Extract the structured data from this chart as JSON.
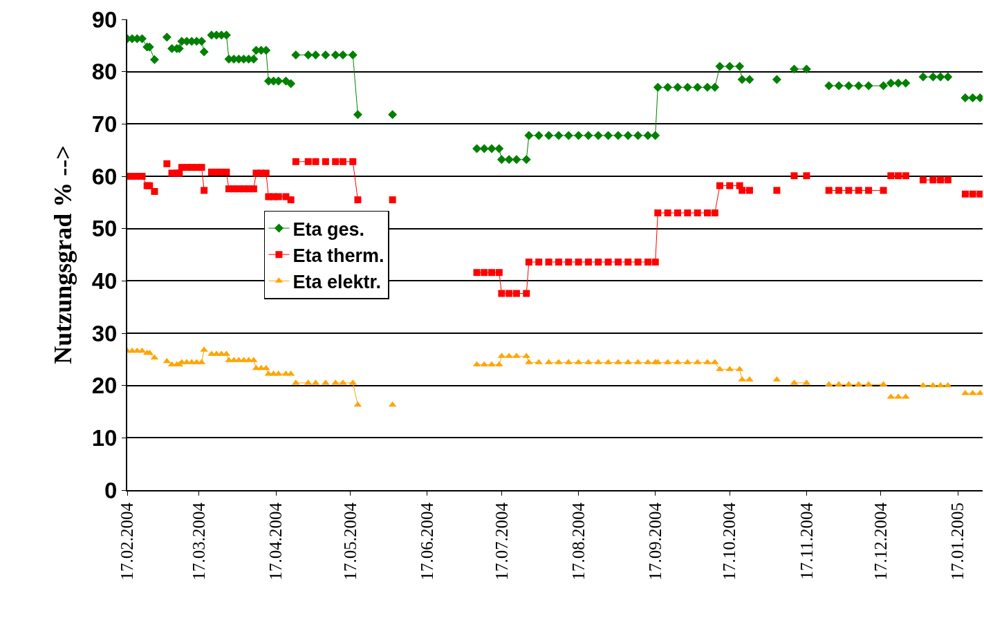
{
  "chart_data": {
    "type": "line",
    "ylabel": "Nutzungsgrad % -->",
    "x": [
      "2004-02-17",
      "2004-02-19",
      "2004-02-21",
      "2004-02-23",
      "2004-02-25",
      "2004-02-26",
      "2004-02-28",
      "2004-03-01",
      "2004-03-04",
      "2004-03-05",
      "2004-03-06",
      "2004-03-08",
      "2004-03-09",
      "2004-03-10",
      "2004-03-12",
      "2004-03-14",
      "2004-03-16",
      "2004-03-18",
      "2004-03-19",
      "2004-03-20",
      "2004-03-22",
      "2004-03-24",
      "2004-03-26",
      "2004-03-28",
      "2004-03-29",
      "2004-03-31",
      "2004-04-02",
      "2004-04-04",
      "2004-04-06",
      "2004-04-08",
      "2004-04-09",
      "2004-04-11",
      "2004-04-13",
      "2004-04-14",
      "2004-04-16",
      "2004-04-18",
      "2004-04-21",
      "2004-04-23",
      "2004-04-24",
      "2004-04-25",
      "2004-04-30",
      "2004-05-01",
      "2004-05-03",
      "2004-05-04",
      "2004-05-07",
      "2004-05-08",
      "2004-05-11",
      "2004-05-14",
      "2004-05-18",
      "2004-05-20",
      "2004-05-21",
      "2004-06-03",
      "2004-06-04",
      "2004-07-07",
      "2004-07-10",
      "2004-07-13",
      "2004-07-16",
      "2004-07-17",
      "2004-07-20",
      "2004-07-23",
      "2004-07-27",
      "2004-07-28",
      "2004-08-01",
      "2004-08-03",
      "2004-08-05",
      "2004-08-09",
      "2004-08-13",
      "2004-08-17",
      "2004-08-21",
      "2004-08-25",
      "2004-08-29",
      "2004-09-02",
      "2004-09-06",
      "2004-09-10",
      "2004-09-14",
      "2004-09-17",
      "2004-09-18",
      "2004-09-22",
      "2004-09-26",
      "2004-09-30",
      "2004-10-04",
      "2004-10-08",
      "2004-10-11",
      "2004-10-13",
      "2004-10-17",
      "2004-10-21",
      "2004-10-22",
      "2004-10-25",
      "2004-10-26",
      "2004-11-05",
      "2004-11-06",
      "2004-11-12",
      "2004-11-17",
      "2004-11-20",
      "2004-11-26",
      "2004-11-30",
      "2004-12-04",
      "2004-12-08",
      "2004-12-12",
      "2004-12-18",
      "2004-12-19",
      "2004-12-21",
      "2004-12-24",
      "2004-12-27",
      "2004-12-29",
      "2005-01-03",
      "2005-01-07",
      "2005-01-10",
      "2005-01-13",
      "2005-01-16",
      "2005-01-20",
      "2005-01-23",
      "2005-01-26"
    ],
    "series": [
      {
        "name": "Eta ges.",
        "color": "#008000",
        "marker": "diamond",
        "values": [
          86.3,
          86.3,
          86.3,
          86.3,
          84.7,
          84.7,
          82.3,
          null,
          86.6,
          null,
          84.4,
          84.4,
          84.4,
          85.8,
          85.8,
          85.8,
          85.8,
          85.8,
          83.8,
          null,
          87.0,
          87.0,
          87.0,
          87.0,
          82.4,
          82.4,
          82.4,
          82.4,
          82.4,
          82.4,
          84.1,
          84.1,
          84.1,
          78.2,
          78.2,
          78.2,
          78.2,
          77.7,
          null,
          83.2,
          83.2,
          null,
          83.2,
          null,
          83.2,
          null,
          83.2,
          83.2,
          83.2,
          71.8,
          null,
          71.8,
          null,
          65.3,
          65.3,
          65.3,
          65.3,
          63.2,
          63.2,
          63.2,
          63.2,
          67.8,
          67.8,
          null,
          67.8,
          67.8,
          67.8,
          67.8,
          67.8,
          67.8,
          67.8,
          67.8,
          67.8,
          67.8,
          67.8,
          67.8,
          77.0,
          77.0,
          77.0,
          77.0,
          77.0,
          77.0,
          77.0,
          81.0,
          81.0,
          81.0,
          78.5,
          78.5,
          null,
          78.5,
          null,
          80.5,
          80.5,
          null,
          77.3,
          77.3,
          77.3,
          77.3,
          77.3,
          77.3,
          null,
          77.8,
          77.8,
          77.8,
          null,
          79.0,
          79.0,
          79.0,
          79.0,
          null,
          75.0,
          75.0,
          75.0
        ]
      },
      {
        "name": "Eta therm.",
        "color": "#ff0000",
        "marker": "square",
        "values": [
          60.0,
          60.0,
          60.0,
          60.0,
          58.2,
          58.2,
          57.1,
          null,
          62.4,
          null,
          60.6,
          60.6,
          60.6,
          61.7,
          61.7,
          61.7,
          61.7,
          61.7,
          57.3,
          null,
          60.8,
          60.8,
          60.8,
          60.8,
          57.6,
          57.6,
          57.6,
          57.6,
          57.6,
          57.6,
          60.6,
          60.6,
          60.6,
          56.1,
          56.1,
          56.1,
          56.1,
          55.5,
          null,
          62.8,
          62.8,
          null,
          62.8,
          null,
          62.8,
          null,
          62.8,
          62.8,
          62.8,
          55.5,
          null,
          55.5,
          null,
          41.6,
          41.6,
          41.6,
          41.6,
          37.6,
          37.6,
          37.6,
          37.6,
          43.6,
          43.6,
          null,
          43.6,
          43.6,
          43.6,
          43.6,
          43.6,
          43.6,
          43.6,
          43.6,
          43.6,
          43.6,
          43.6,
          43.6,
          53.0,
          53.0,
          53.0,
          53.0,
          53.0,
          53.0,
          53.0,
          58.2,
          58.2,
          58.2,
          57.3,
          57.3,
          null,
          57.3,
          null,
          60.1,
          60.1,
          null,
          57.3,
          57.3,
          57.3,
          57.3,
          57.3,
          57.3,
          null,
          60.1,
          60.1,
          60.1,
          null,
          59.3,
          59.3,
          59.3,
          59.3,
          null,
          56.6,
          56.6,
          56.6
        ]
      },
      {
        "name": "Eta elektr.",
        "color": "#ffa500",
        "marker": "triangle",
        "values": [
          26.6,
          26.6,
          26.6,
          26.6,
          26.2,
          26.2,
          25.3,
          null,
          24.6,
          null,
          24.0,
          24.0,
          24.0,
          24.4,
          24.4,
          24.4,
          24.4,
          24.4,
          26.8,
          null,
          26.0,
          26.0,
          26.0,
          26.0,
          24.8,
          24.8,
          24.8,
          24.8,
          24.8,
          24.8,
          23.3,
          23.3,
          23.3,
          22.2,
          22.2,
          22.2,
          22.2,
          22.2,
          null,
          20.5,
          20.5,
          null,
          20.5,
          null,
          20.5,
          null,
          20.5,
          20.5,
          20.5,
          16.3,
          null,
          16.3,
          null,
          24.0,
          24.0,
          24.0,
          24.0,
          25.6,
          25.6,
          25.6,
          25.6,
          24.4,
          24.4,
          null,
          24.4,
          24.4,
          24.4,
          24.4,
          24.4,
          24.4,
          24.4,
          24.4,
          24.4,
          24.4,
          24.4,
          24.4,
          24.4,
          24.4,
          24.4,
          24.4,
          24.4,
          24.4,
          24.4,
          23.1,
          23.1,
          23.1,
          21.1,
          21.1,
          null,
          21.1,
          null,
          20.5,
          20.5,
          null,
          20.2,
          20.2,
          20.2,
          20.2,
          20.2,
          20.2,
          null,
          17.8,
          17.8,
          17.8,
          null,
          20.0,
          20.0,
          20.0,
          20.0,
          null,
          18.5,
          18.5,
          18.5
        ]
      }
    ],
    "xlim": [
      "2004-02-17",
      "2005-01-27"
    ],
    "xticks": [
      {
        "value": "2004-02-17",
        "label": "17.02.2004"
      },
      {
        "value": "2004-03-17",
        "label": "17.03.2004"
      },
      {
        "value": "2004-04-17",
        "label": "17.04.2004"
      },
      {
        "value": "2004-05-17",
        "label": "17.05.2004"
      },
      {
        "value": "2004-06-17",
        "label": "17.06.2004"
      },
      {
        "value": "2004-07-17",
        "label": "17.07.2004"
      },
      {
        "value": "2004-08-17",
        "label": "17.08.2004"
      },
      {
        "value": "2004-09-17",
        "label": "17.09.2004"
      },
      {
        "value": "2004-10-17",
        "label": "17.10.2004"
      },
      {
        "value": "2004-11-17",
        "label": "17.11.2004"
      },
      {
        "value": "2004-12-17",
        "label": "17.12.2004"
      },
      {
        "value": "2005-01-17",
        "label": "17.01.2005"
      }
    ],
    "ylim": [
      0,
      90
    ],
    "yticks": [
      0,
      10,
      20,
      30,
      40,
      50,
      60,
      70,
      80,
      90
    ],
    "grid": "y",
    "legend": "center left",
    "line_style": "solid"
  }
}
